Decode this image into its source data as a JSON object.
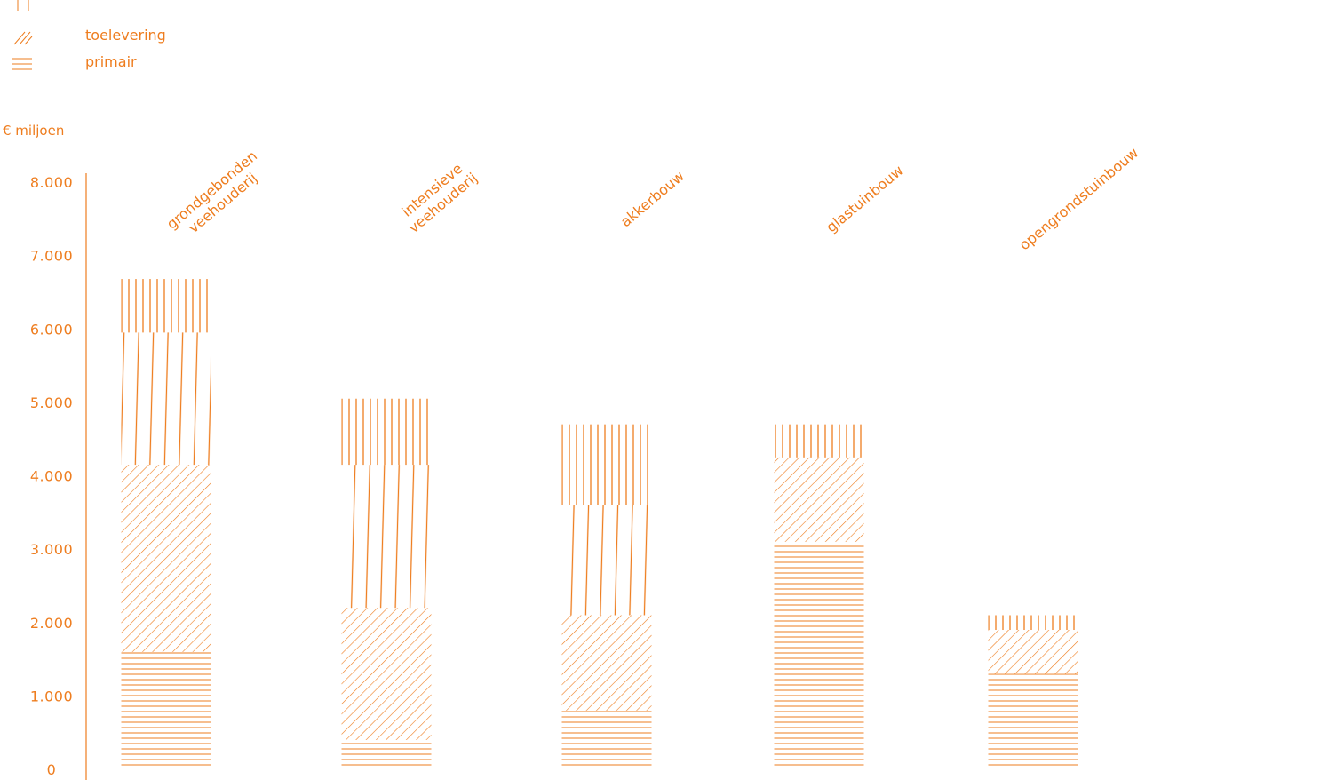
{
  "chart_data": {
    "type": "bar",
    "stacked": true,
    "unit_label": "€ miljoen",
    "accent_color": "#ee7d1f",
    "ylim": [
      0,
      8000
    ],
    "yticks": [
      "0",
      "1.000",
      "2.000",
      "3.000",
      "4.000",
      "5.000",
      "6.000",
      "7.000",
      "8.000"
    ],
    "ytick_values": [
      0,
      1000,
      2000,
      3000,
      4000,
      5000,
      6000,
      7000,
      8000
    ],
    "categories": [
      [
        "grondgebonden",
        "veehouderij"
      ],
      [
        "intensieve",
        "veehouderij"
      ],
      [
        "akkerbouw"
      ],
      [
        "glastuinbouw"
      ],
      [
        "opengrondstuinbouw"
      ]
    ],
    "legend": [
      {
        "label": "",
        "pattern": "vertical"
      },
      {
        "label": "toelevering",
        "pattern": "diagonal"
      },
      {
        "label": "primair",
        "pattern": "horizontal"
      }
    ],
    "series": [
      {
        "name": "primair",
        "pattern": "horizontal",
        "values": [
          1600,
          400,
          800,
          3100,
          1300
        ]
      },
      {
        "name": "toelevering",
        "pattern": "diagonal",
        "values": [
          2550,
          1800,
          1300,
          1150,
          600
        ]
      },
      {
        "pattern": "vertical-wide",
        "values": [
          1800,
          1950,
          1500,
          0,
          0
        ]
      },
      {
        "pattern": "vertical-narrow",
        "values": [
          730,
          900,
          1100,
          450,
          200
        ]
      }
    ]
  }
}
